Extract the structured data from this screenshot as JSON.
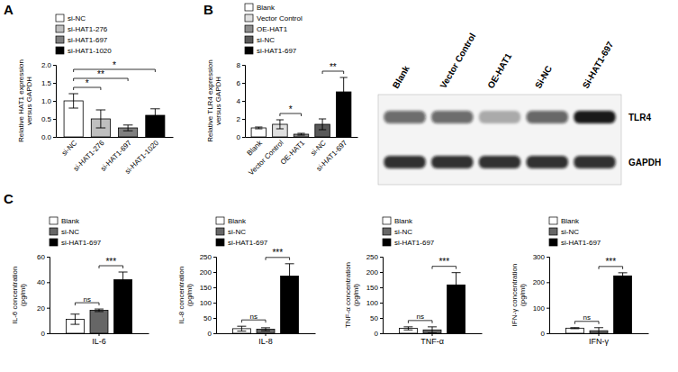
{
  "panel_labels": [
    "A",
    "B",
    "C"
  ],
  "chart_data": [
    {
      "type": "bar",
      "y_label": "Relative HAT1 expression\nversus GAPDH",
      "categories": [
        "si-NC",
        "si-HAT1-276",
        "si-HAT1-697",
        "si-HAT1-1020"
      ],
      "values": [
        1.0,
        0.5,
        0.25,
        0.6
      ],
      "error": [
        0.2,
        0.25,
        0.08,
        0.18
      ],
      "colors": [
        "#ffffff",
        "#bfbfbf",
        "#7f7f7f",
        "#000000"
      ],
      "ylim": [
        0,
        2
      ],
      "yticks": [
        {
          "value": 0,
          "label": "0.0"
        },
        {
          "value": 0.5,
          "label": "0.5"
        },
        {
          "value": 1,
          "label": "1.0"
        },
        {
          "value": 1.5,
          "label": "1.5"
        },
        {
          "value": 2,
          "label": "2.0"
        }
      ],
      "legend": "top-left",
      "annotations": [
        {
          "between": [
            "si-NC",
            "si-HAT1-276"
          ],
          "label": "*"
        },
        {
          "between": [
            "si-NC",
            "si-HAT1-697"
          ],
          "label": "**"
        },
        {
          "between": [
            "si-NC",
            "si-HAT1-1020"
          ],
          "label": "*"
        }
      ]
    },
    {
      "type": "bar",
      "y_label": "Relative TLR4 expression\nversus GAPDH",
      "categories": [
        "Blank",
        "Vector Control",
        "OE-HAT1",
        "si-NC",
        "si-HAT1-697"
      ],
      "values": [
        1.0,
        1.4,
        0.3,
        1.4,
        5.0
      ],
      "error": [
        0.1,
        0.5,
        0.1,
        0.6,
        1.6
      ],
      "colors": [
        "#ffffff",
        "#e0e0e0",
        "#8c8c8c",
        "#595959",
        "#000000"
      ],
      "ylim": [
        0,
        8
      ],
      "yticks": [
        0,
        2,
        4,
        6,
        8
      ],
      "legend": "top-left",
      "annotations": [
        {
          "between": [
            "Vector Control",
            "OE-HAT1"
          ],
          "label": "*"
        },
        {
          "between": [
            "si-NC",
            "si-HAT1-697"
          ],
          "label": "**"
        }
      ]
    },
    {
      "type": "bar",
      "y_label": "IL-6 concentration\n(pg/ml)",
      "categories": [
        "IL-6"
      ],
      "series": [
        {
          "name": "Blank",
          "color": "#ffffff",
          "values": [
            11
          ],
          "error": [
            4
          ]
        },
        {
          "name": "si-NC",
          "color": "#666666",
          "values": [
            18
          ],
          "error": [
            1
          ]
        },
        {
          "name": "si-HAT1-697",
          "color": "#000000",
          "values": [
            42
          ],
          "error": [
            6
          ]
        }
      ],
      "ylim": [
        0,
        60
      ],
      "yticks": [
        0,
        20,
        40,
        60
      ],
      "legend": "top-left",
      "annotations": [
        {
          "between": [
            "Blank",
            "si-NC"
          ],
          "label": "ns"
        },
        {
          "between": [
            "si-NC",
            "si-HAT1-697"
          ],
          "label": "***"
        }
      ]
    },
    {
      "type": "bar",
      "y_label": "IL-8 concentration\n(pg/ml)",
      "categories": [
        "IL-8"
      ],
      "series": [
        {
          "name": "Blank",
          "color": "#ffffff",
          "values": [
            15
          ],
          "error": [
            8
          ]
        },
        {
          "name": "si-NC",
          "color": "#666666",
          "values": [
            13
          ],
          "error": [
            5
          ]
        },
        {
          "name": "si-HAT1-697",
          "color": "#000000",
          "values": [
            187
          ],
          "error": [
            40
          ]
        }
      ],
      "ylim": [
        0,
        250
      ],
      "yticks": [
        0,
        50,
        100,
        150,
        200,
        250
      ],
      "legend": "top-left",
      "annotations": [
        {
          "between": [
            "Blank",
            "si-NC"
          ],
          "label": "ns"
        },
        {
          "between": [
            "si-NC",
            "si-HAT1-697"
          ],
          "label": "***"
        }
      ]
    },
    {
      "type": "bar",
      "y_label": "TNF-α concentration\n(pg/ml)",
      "categories": [
        "TNF-α"
      ],
      "series": [
        {
          "name": "Blank",
          "color": "#ffffff",
          "values": [
            16
          ],
          "error": [
            5
          ]
        },
        {
          "name": "si-NC",
          "color": "#666666",
          "values": [
            11
          ],
          "error": [
            10
          ]
        },
        {
          "name": "si-HAT1-697",
          "color": "#000000",
          "values": [
            158
          ],
          "error": [
            40
          ]
        }
      ],
      "ylim": [
        0,
        250
      ],
      "yticks": [
        0,
        50,
        100,
        150,
        200,
        250
      ],
      "legend": "top-left",
      "annotations": [
        {
          "between": [
            "Blank",
            "si-NC"
          ],
          "label": "ns"
        },
        {
          "between": [
            "si-NC",
            "si-HAT1-697"
          ],
          "label": "***"
        }
      ]
    },
    {
      "type": "bar",
      "y_label": "IFN-γ concentration\n(pg/ml)",
      "categories": [
        "IFN-γ"
      ],
      "series": [
        {
          "name": "Blank",
          "color": "#ffffff",
          "values": [
            20
          ],
          "error": [
            2
          ]
        },
        {
          "name": "si-NC",
          "color": "#666666",
          "values": [
            10
          ],
          "error": [
            12
          ]
        },
        {
          "name": "si-HAT1-697",
          "color": "#000000",
          "values": [
            225
          ],
          "error": [
            12
          ]
        }
      ],
      "ylim": [
        0,
        300
      ],
      "yticks": [
        0,
        100,
        200,
        300
      ],
      "legend": "top-left",
      "annotations": [
        {
          "between": [
            "Blank",
            "si-NC"
          ],
          "label": "ns"
        },
        {
          "between": [
            "si-NC",
            "si-HAT1-697"
          ],
          "label": "***"
        }
      ]
    }
  ],
  "blot": {
    "lanes": [
      "Blank",
      "Vector Control",
      "OE-HAT1",
      "Si-NC",
      "Si-HAT1-697"
    ],
    "rows": [
      {
        "label": "TLR4",
        "intensity": [
          0.6,
          0.6,
          0.3,
          0.62,
          0.95
        ]
      },
      {
        "label": "GAPDH",
        "intensity": [
          0.85,
          0.85,
          0.85,
          0.85,
          0.85
        ]
      }
    ]
  }
}
